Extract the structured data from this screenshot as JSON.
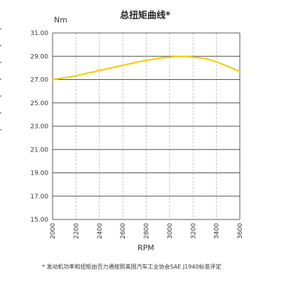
{
  "chart_data": {
    "type": "line",
    "title": "总扭矩曲线*",
    "ylabel": "Nm",
    "xlabel": "RPM",
    "x_ticks": [
      "2000",
      "2200",
      "2400",
      "2600",
      "2800",
      "3000",
      "3200",
      "3400",
      "3600"
    ],
    "y_ticks": [
      "15.00",
      "17.00",
      "19.00",
      "21.00",
      "23.00",
      "25.00",
      "27.00",
      "29.00",
      "31.00"
    ],
    "xlim": [
      2000,
      3600
    ],
    "ylim": [
      15,
      31
    ],
    "grid": true,
    "series": [
      {
        "color": "#f2cf00",
        "x": [
          2000,
          2100,
          2200,
          2300,
          2400,
          2500,
          2600,
          2700,
          2800,
          2900,
          3000,
          3100,
          3200,
          3300,
          3400,
          3500,
          3600
        ],
        "values": [
          27.0,
          27.15,
          27.33,
          27.55,
          27.78,
          28.0,
          28.22,
          28.44,
          28.64,
          28.81,
          28.92,
          28.97,
          28.93,
          28.8,
          28.52,
          28.12,
          27.68
        ]
      }
    ],
    "footnote": "* 发动机功率和扭矩由百力通按照美国汽车工业协会SAE J1940标准评定"
  }
}
